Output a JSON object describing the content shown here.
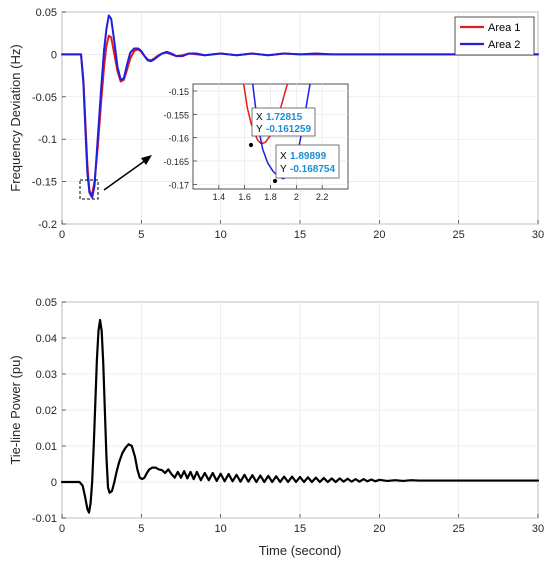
{
  "chart_data": [
    {
      "type": "line",
      "ylabel": "Frequency Deviation (Hz)",
      "xlabel": "",
      "xlim": [
        0,
        30
      ],
      "ylim": [
        -0.2,
        0.05
      ],
      "xticks": [
        0,
        5,
        10,
        15,
        20,
        25,
        30
      ],
      "yticks": [
        -0.2,
        -0.15,
        -0.1,
        -0.05,
        0,
        0.05
      ],
      "ytick_labels": [
        "-0.2",
        "-0.15",
        "-0.1",
        "-0.05",
        "0",
        "0.05"
      ],
      "legend_position": "top-right",
      "series": [
        {
          "name": "Area 1",
          "color": "#e41a1c",
          "x": [
            0,
            1.2,
            1.35,
            1.5,
            1.6,
            1.73,
            1.9,
            2.05,
            2.25,
            2.45,
            2.65,
            2.8,
            2.95,
            3.1,
            3.3,
            3.5,
            3.7,
            3.9,
            4.1,
            4.3,
            4.55,
            4.8,
            5.0,
            5.2,
            5.4,
            5.6,
            5.8,
            6.0,
            6.3,
            6.6,
            6.9,
            7.2,
            7.6,
            8.0,
            8.5,
            9.0,
            10,
            11,
            12,
            13,
            14,
            15,
            16,
            17,
            18,
            19,
            20,
            21,
            22,
            23,
            24,
            25,
            26,
            27,
            28,
            29,
            30
          ],
          "y": [
            0,
            0,
            -0.03,
            -0.09,
            -0.13,
            -0.1613,
            -0.165,
            -0.15,
            -0.11,
            -0.06,
            -0.015,
            0.01,
            0.022,
            0.02,
            0.0,
            -0.02,
            -0.032,
            -0.03,
            -0.018,
            -0.005,
            0.004,
            0.006,
            0.003,
            -0.002,
            -0.006,
            -0.007,
            -0.005,
            -0.002,
            0.001,
            0.002,
            0.0,
            -0.002,
            -0.001,
            0.001,
            0.0,
            -0.001,
            0.001,
            -0.001,
            0.001,
            -0.001,
            0.001,
            0.0,
            0.0,
            0.0,
            0.0,
            0.0,
            0.0,
            0.0,
            0.0,
            0.0,
            0.0,
            0.0,
            0.0,
            0.0,
            0.0,
            0.0,
            0.0
          ]
        },
        {
          "name": "Area 2",
          "color": "#1f1fe0",
          "x": [
            0,
            1.2,
            1.35,
            1.5,
            1.6,
            1.73,
            1.9,
            2.05,
            2.25,
            2.45,
            2.65,
            2.8,
            2.95,
            3.1,
            3.3,
            3.5,
            3.7,
            3.9,
            4.1,
            4.3,
            4.55,
            4.8,
            5.0,
            5.2,
            5.4,
            5.6,
            5.8,
            6.0,
            6.3,
            6.6,
            6.9,
            7.2,
            7.6,
            8.0,
            8.5,
            9.0,
            10,
            11,
            12,
            13,
            14,
            15,
            16,
            17,
            18,
            19,
            20,
            21,
            22,
            23,
            24,
            25,
            26,
            27,
            28,
            29,
            30
          ],
          "y": [
            0,
            0,
            -0.035,
            -0.1,
            -0.14,
            -0.163,
            -0.1688,
            -0.155,
            -0.1,
            -0.045,
            0.005,
            0.03,
            0.046,
            0.042,
            0.015,
            -0.015,
            -0.03,
            -0.028,
            -0.012,
            0.002,
            0.007,
            0.007,
            0.004,
            -0.002,
            -0.007,
            -0.008,
            -0.006,
            -0.003,
            0.001,
            0.003,
            0.001,
            -0.002,
            -0.002,
            0.001,
            0.001,
            -0.001,
            0.001,
            -0.001,
            0.001,
            -0.001,
            0.001,
            0.0,
            0.001,
            0.0,
            0.0,
            0.0,
            0.0,
            0.0,
            0.0,
            0.0,
            0.0,
            0.0,
            0.0,
            0.0,
            0.0,
            0.0,
            0.0
          ]
        }
      ],
      "inset": {
        "xlim": [
          1.2,
          2.4
        ],
        "ylim": [
          -0.171,
          -0.1485
        ],
        "xticks": [
          1.4,
          1.6,
          1.8,
          2,
          2.2
        ],
        "xtick_labels": [
          "1.4",
          "1.6",
          "1.8",
          "2",
          "2.2"
        ],
        "yticks": [
          -0.15,
          -0.155,
          -0.16,
          -0.165,
          -0.17
        ],
        "ytick_labels": [
          "-0.15",
          "-0.155",
          "-0.16",
          "-0.165",
          "-0.17"
        ],
        "series": [
          {
            "color": "#e41a1c",
            "x": [
              1.59,
              1.62,
              1.65,
              1.68,
              1.7,
              1.728,
              1.76,
              1.8,
              1.84,
              1.88,
              1.92,
              1.96,
              2.0
            ],
            "y": [
              -0.148,
              -0.1535,
              -0.157,
              -0.1592,
              -0.1605,
              -0.1613,
              -0.161,
              -0.1595,
              -0.157,
              -0.1535,
              -0.1495,
              -0.146,
              -0.143
            ]
          },
          {
            "color": "#1f1fe0",
            "x": [
              1.66,
              1.7,
              1.74,
              1.78,
              1.82,
              1.86,
              1.899,
              1.94,
              1.98,
              2.02,
              2.06,
              2.1,
              2.14
            ],
            "y": [
              -0.148,
              -0.157,
              -0.1625,
              -0.1655,
              -0.1672,
              -0.1683,
              -0.1688,
              -0.168,
              -0.166,
              -0.162,
              -0.156,
              -0.1495,
              -0.143
            ]
          }
        ],
        "datatips": [
          {
            "x_label": "X",
            "x_value": "1.72815",
            "y_label": "Y",
            "y_value": "-0.161259",
            "x": 1.72815,
            "y": -0.161259
          },
          {
            "x_label": "X",
            "x_value": "1.89899",
            "y_label": "Y",
            "y_value": "-0.168754",
            "x": 1.89899,
            "y": -0.168754
          }
        ]
      }
    },
    {
      "type": "line",
      "ylabel": "Tie-line Power (pu)",
      "xlabel": "Time (second)",
      "xlim": [
        0,
        30
      ],
      "ylim": [
        -0.01,
        0.05
      ],
      "xticks": [
        0,
        5,
        10,
        15,
        20,
        25,
        30
      ],
      "yticks": [
        -0.01,
        0,
        0.01,
        0.02,
        0.03,
        0.04,
        0.05
      ],
      "ytick_labels": [
        "-0.01",
        "0",
        "0.01",
        "0.02",
        "0.03",
        "0.04",
        "0.05"
      ],
      "series": [
        {
          "color": "#000000",
          "x": [
            0,
            1.1,
            1.3,
            1.45,
            1.6,
            1.7,
            1.8,
            1.9,
            2.0,
            2.1,
            2.2,
            2.3,
            2.4,
            2.5,
            2.6,
            2.7,
            2.8,
            2.9,
            3.0,
            3.15,
            3.3,
            3.45,
            3.6,
            3.8,
            4.0,
            4.2,
            4.4,
            4.6,
            4.75,
            4.9,
            5.05,
            5.2,
            5.35,
            5.5,
            5.7,
            5.9,
            6.1,
            6.3,
            6.5,
            6.7,
            6.9,
            7.1,
            7.3,
            7.5,
            7.7,
            7.9,
            8.1,
            8.3,
            8.5,
            8.75,
            9.0,
            9.25,
            9.5,
            9.75,
            10.0,
            10.25,
            10.5,
            10.75,
            11.0,
            11.25,
            11.5,
            11.75,
            12.0,
            12.25,
            12.5,
            12.75,
            13.0,
            13.25,
            13.5,
            13.75,
            14.0,
            14.25,
            14.5,
            14.75,
            15.0,
            15.25,
            15.5,
            15.75,
            16.0,
            16.25,
            16.5,
            16.75,
            17.0,
            17.25,
            17.5,
            17.75,
            18.0,
            18.25,
            18.5,
            18.75,
            19.0,
            19.25,
            19.5,
            19.75,
            20.0,
            20.5,
            21.0,
            21.5,
            22.0,
            22.5,
            23.0,
            24.0,
            25.0,
            26.0,
            28.0,
            30.0
          ],
          "y": [
            0,
            0,
            -0.001,
            -0.004,
            -0.0075,
            -0.0085,
            -0.006,
            0.0,
            0.01,
            0.022,
            0.034,
            0.042,
            0.045,
            0.042,
            0.033,
            0.02,
            0.007,
            -0.0015,
            -0.003,
            -0.0025,
            0.0,
            0.003,
            0.0055,
            0.008,
            0.0095,
            0.0105,
            0.01,
            0.007,
            0.0035,
            0.0012,
            0.0008,
            0.0012,
            0.0025,
            0.0035,
            0.004,
            0.004,
            0.0035,
            0.0033,
            0.0025,
            0.0035,
            0.0022,
            0.0012,
            0.0028,
            0.0012,
            0.003,
            0.001,
            0.0028,
            0.0008,
            0.0028,
            0.0005,
            0.0025,
            0.0005,
            0.0025,
            0.0003,
            0.0023,
            0.0002,
            0.0022,
            0.0002,
            0.002,
            0.0001,
            0.002,
            0.0001,
            0.0019,
            0.0,
            0.0018,
            0.0,
            0.0017,
            0.0,
            0.0016,
            0.0,
            0.0015,
            0.0,
            0.0015,
            0.0,
            0.0014,
            0.0,
            0.0013,
            0.0,
            0.0012,
            0.0,
            0.0011,
            0.0,
            0.001,
            0.0,
            0.001,
            0.0001,
            0.0009,
            0.0001,
            0.0008,
            0.0001,
            0.0008,
            0.0002,
            0.0007,
            0.0002,
            0.0006,
            0.0003,
            0.0005,
            0.0003,
            0.0005,
            0.0004,
            0.0004,
            0.0004,
            0.0004,
            0.0004,
            0.0004,
            0.0004
          ]
        }
      ]
    }
  ]
}
